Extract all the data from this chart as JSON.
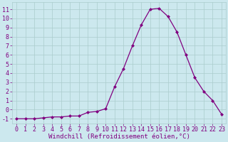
{
  "x": [
    0,
    1,
    2,
    3,
    4,
    5,
    6,
    7,
    8,
    9,
    10,
    11,
    12,
    13,
    14,
    15,
    16,
    17,
    18,
    19,
    20,
    21,
    22,
    23
  ],
  "y": [
    -1,
    -1,
    -1,
    -0.9,
    -0.8,
    -0.8,
    -0.7,
    -0.7,
    -0.3,
    -0.2,
    0.1,
    2.5,
    4.5,
    7.0,
    9.3,
    11.0,
    11.1,
    10.2,
    8.5,
    6.0,
    3.5,
    2.0,
    1.0,
    -0.5
  ],
  "line_color": "#800080",
  "marker": "D",
  "marker_size": 2.0,
  "linewidth": 0.9,
  "xlabel": "Windchill (Refroidissement éolien,°C)",
  "yticks": [
    -1,
    0,
    1,
    2,
    3,
    4,
    5,
    6,
    7,
    8,
    9,
    10,
    11
  ],
  "ylim": [
    -1.5,
    11.8
  ],
  "xlim": [
    -0.5,
    23.5
  ],
  "bg_color": "#cce8ee",
  "grid_color": "#aacccc",
  "tick_color": "#800080",
  "xlabel_color": "#800080",
  "xlabel_fontsize": 6.5,
  "tick_fontsize": 6.0
}
